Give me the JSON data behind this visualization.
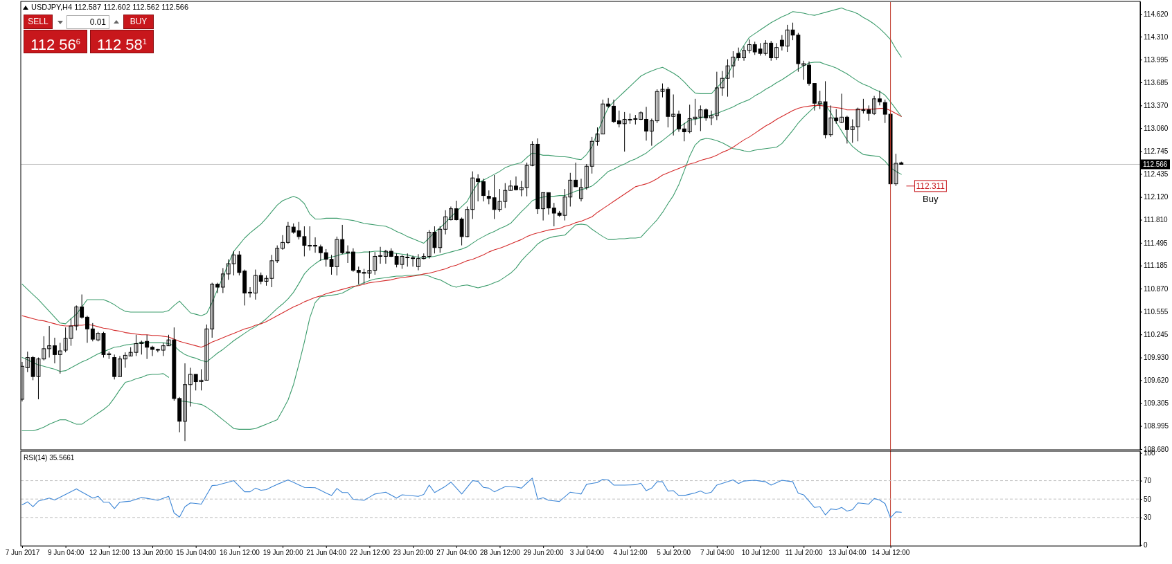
{
  "chart_data": [
    {
      "type": "candlestick",
      "title": "USDJPY,H4 112.587 112.602 112.562 112.566",
      "categories": [
        null,
        null,
        null,
        null,
        null,
        null,
        null,
        null,
        null,
        null,
        null,
        null,
        null,
        null,
        null,
        null,
        null,
        null,
        null,
        null,
        null,
        null,
        null,
        null,
        null,
        null,
        null,
        null,
        null,
        null,
        null,
        null,
        null,
        null,
        null,
        null,
        null,
        null,
        null,
        null,
        null,
        null,
        null,
        null,
        null,
        null,
        null,
        null,
        null,
        null,
        null,
        null,
        null,
        null,
        null,
        null,
        null,
        null,
        null,
        null,
        null,
        null,
        null,
        null,
        null,
        null,
        null,
        null,
        null,
        null,
        null,
        null,
        null,
        null,
        null,
        null,
        null,
        null,
        null,
        null,
        null,
        null,
        null,
        null,
        null,
        null,
        null,
        null,
        null,
        null,
        null,
        null,
        null,
        null,
        null,
        null,
        null,
        null,
        null,
        null,
        null,
        null,
        null,
        null,
        null,
        null,
        null,
        null,
        null,
        null,
        null,
        null,
        null,
        null,
        null,
        null,
        null,
        null,
        null,
        null,
        null,
        null,
        null,
        null,
        null,
        null,
        null,
        null,
        null,
        null,
        null,
        null,
        null,
        null,
        null,
        null,
        null,
        null,
        null,
        null,
        null,
        null,
        null,
        null,
        null,
        null,
        null,
        null,
        null,
        null,
        null,
        null,
        null,
        null,
        null,
        null,
        null,
        null,
        null,
        null,
        null,
        null,
        null
      ],
      "ylim": [
        108.67,
        114.79
      ],
      "yticks": [
        {
          "value": 114.62,
          "label": "114.620"
        },
        {
          "value": 114.31,
          "label": "114.310"
        },
        {
          "value": 113.995,
          "label": "113.995"
        },
        {
          "value": 113.685,
          "label": "113.685"
        },
        {
          "value": 113.37,
          "label": "113.370"
        },
        {
          "value": 113.06,
          "label": "113.060"
        },
        {
          "value": 112.745,
          "label": "112.745"
        },
        {
          "value": 112.435,
          "label": "112.435"
        },
        {
          "value": 112.12,
          "label": "112.120"
        },
        {
          "value": 111.81,
          "label": "111.810"
        },
        {
          "value": 111.495,
          "label": "111.495"
        },
        {
          "value": 111.185,
          "label": "111.185"
        },
        {
          "value": 110.87,
          "label": "110.870"
        },
        {
          "value": 110.555,
          "label": "110.555"
        },
        {
          "value": 110.245,
          "label": "110.245"
        },
        {
          "value": 109.93,
          "label": "109.930"
        },
        {
          "value": 109.62,
          "label": "109.620"
        },
        {
          "value": 109.305,
          "label": "109.305"
        },
        {
          "value": 108.995,
          "label": "108.995"
        },
        {
          "value": 108.68,
          "label": "108.680"
        }
      ],
      "tick_labels": "y",
      "ohlc": [
        [
          109.36,
          109.87,
          109.33,
          109.81
        ],
        [
          109.79,
          110.01,
          109.73,
          109.93
        ],
        [
          109.93,
          109.95,
          109.62,
          109.67
        ],
        [
          109.67,
          109.93,
          109.36,
          109.91
        ],
        [
          109.91,
          110.22,
          109.89,
          110.05
        ],
        [
          110.05,
          110.36,
          109.93,
          110.09
        ],
        [
          110.09,
          110.2,
          109.85,
          109.97
        ],
        [
          109.97,
          110.13,
          109.71,
          110.02
        ],
        [
          110.03,
          110.34,
          110.0,
          110.19
        ],
        [
          110.19,
          110.46,
          110.09,
          110.36
        ],
        [
          110.36,
          110.64,
          110.3,
          110.62
        ],
        [
          110.62,
          110.79,
          110.46,
          110.48
        ],
        [
          110.48,
          110.5,
          110.13,
          110.32
        ],
        [
          110.32,
          110.4,
          110.15,
          110.18
        ],
        [
          110.17,
          110.28,
          110.15,
          110.26
        ],
        [
          110.26,
          110.28,
          109.93,
          109.97
        ],
        [
          109.97,
          110.01,
          109.91,
          109.98
        ],
        [
          109.93,
          109.97,
          109.63,
          109.67
        ],
        [
          109.67,
          109.95,
          109.67,
          109.91
        ],
        [
          109.91,
          110.0,
          109.79,
          109.96
        ],
        [
          109.95,
          110.07,
          109.95,
          110.0
        ],
        [
          110.0,
          110.24,
          109.95,
          110.12
        ],
        [
          110.12,
          110.16,
          109.97,
          110.14
        ],
        [
          110.15,
          110.24,
          109.91,
          110.07
        ],
        [
          110.07,
          110.09,
          109.95,
          110.04
        ],
        [
          110.04,
          110.05,
          110.0,
          110.03
        ],
        [
          110.03,
          110.13,
          109.95,
          110.09
        ],
        [
          110.09,
          110.24,
          110.09,
          110.17
        ],
        [
          110.17,
          110.34,
          109.34,
          109.37
        ],
        [
          109.37,
          109.39,
          108.91,
          109.06
        ],
        [
          109.06,
          109.85,
          108.79,
          109.56
        ],
        [
          109.56,
          109.79,
          109.26,
          109.7
        ],
        [
          109.7,
          109.7,
          109.48,
          109.6
        ],
        [
          109.6,
          109.77,
          109.48,
          109.62
        ],
        [
          109.62,
          110.38,
          109.62,
          110.32
        ],
        [
          110.32,
          110.95,
          110.2,
          110.93
        ],
        [
          110.93,
          110.95,
          110.81,
          110.89
        ],
        [
          110.89,
          111.15,
          110.81,
          111.07
        ],
        [
          111.07,
          111.27,
          110.99,
          111.21
        ],
        [
          111.21,
          111.38,
          111.05,
          111.33
        ],
        [
          111.33,
          111.38,
          111.05,
          111.09
        ],
        [
          111.11,
          111.13,
          110.64,
          110.81
        ],
        [
          110.81,
          110.89,
          110.75,
          110.82
        ],
        [
          110.81,
          111.13,
          110.72,
          111.05
        ],
        [
          111.05,
          111.09,
          110.93,
          110.97
        ],
        [
          110.97,
          111.05,
          110.91,
          111.01
        ],
        [
          111.01,
          111.33,
          110.89,
          111.25
        ],
        [
          111.25,
          111.46,
          111.22,
          111.42
        ],
        [
          111.42,
          111.6,
          111.4,
          111.5
        ],
        [
          111.5,
          111.78,
          111.48,
          111.72
        ],
        [
          111.71,
          111.76,
          111.62,
          111.64
        ],
        [
          111.66,
          111.78,
          111.54,
          111.58
        ],
        [
          111.58,
          111.72,
          111.31,
          111.46
        ],
        [
          111.46,
          111.72,
          111.39,
          111.46
        ],
        [
          111.46,
          111.57,
          111.36,
          111.45
        ],
        [
          111.44,
          111.47,
          111.25,
          111.36
        ],
        [
          111.36,
          111.41,
          111.17,
          111.27
        ],
        [
          111.27,
          111.33,
          111.06,
          111.17
        ],
        [
          111.17,
          111.58,
          111.05,
          111.54
        ],
        [
          111.54,
          111.74,
          111.34,
          111.36
        ],
        [
          111.36,
          111.46,
          111.22,
          111.37
        ],
        [
          111.37,
          111.42,
          111.1,
          111.12
        ],
        [
          111.12,
          111.17,
          110.93,
          111.09
        ],
        [
          111.09,
          111.14,
          110.93,
          111.08
        ],
        [
          111.08,
          111.38,
          111.01,
          111.12
        ],
        [
          111.12,
          111.37,
          111.06,
          111.31
        ],
        [
          111.31,
          111.44,
          111.21,
          111.32
        ],
        [
          111.31,
          111.4,
          111.21,
          111.38
        ],
        [
          111.38,
          111.42,
          111.3,
          111.31
        ],
        [
          111.31,
          111.35,
          111.16,
          111.2
        ],
        [
          111.2,
          111.33,
          111.14,
          111.31
        ],
        [
          111.3,
          111.35,
          111.17,
          111.3
        ],
        [
          111.29,
          111.32,
          111.17,
          111.28
        ],
        [
          111.17,
          111.34,
          111.12,
          111.28
        ],
        [
          111.28,
          111.35,
          111.27,
          111.31
        ],
        [
          111.31,
          111.67,
          111.28,
          111.64
        ],
        [
          111.64,
          111.72,
          111.35,
          111.43
        ],
        [
          111.43,
          111.72,
          111.36,
          111.68
        ],
        [
          111.68,
          111.94,
          111.61,
          111.85
        ],
        [
          111.81,
          111.99,
          111.8,
          111.96
        ],
        [
          111.96,
          112.07,
          111.8,
          111.81
        ],
        [
          111.82,
          111.84,
          111.46,
          111.58
        ],
        [
          111.58,
          111.99,
          111.57,
          111.95
        ],
        [
          111.95,
          112.47,
          111.82,
          112.38
        ],
        [
          112.37,
          112.43,
          112.06,
          112.33
        ],
        [
          112.33,
          112.37,
          112.06,
          112.14
        ],
        [
          112.13,
          112.21,
          112.02,
          112.1
        ],
        [
          112.11,
          112.42,
          111.82,
          111.95
        ],
        [
          111.95,
          112.23,
          111.92,
          112.06
        ],
        [
          112.06,
          112.31,
          111.97,
          112.21
        ],
        [
          112.21,
          112.35,
          112.21,
          112.27
        ],
        [
          112.27,
          112.4,
          112.21,
          112.22
        ],
        [
          112.22,
          112.34,
          112.13,
          112.25
        ],
        [
          112.25,
          112.59,
          112.13,
          112.55
        ],
        [
          112.55,
          112.88,
          112.54,
          112.84
        ],
        [
          112.84,
          112.92,
          111.89,
          111.96
        ],
        [
          111.96,
          112.18,
          111.8,
          112.18
        ],
        [
          112.18,
          112.18,
          111.88,
          111.97
        ],
        [
          111.97,
          112.04,
          111.72,
          111.9
        ],
        [
          111.9,
          111.93,
          111.85,
          111.87
        ],
        [
          111.87,
          112.23,
          111.8,
          112.12
        ],
        [
          112.12,
          112.45,
          111.99,
          112.35
        ],
        [
          112.35,
          112.59,
          112.26,
          112.26
        ],
        [
          112.1,
          112.37,
          112.06,
          112.25
        ],
        [
          112.25,
          112.57,
          112.22,
          112.54
        ],
        [
          112.54,
          112.94,
          112.44,
          112.88
        ],
        [
          112.88,
          113.07,
          112.82,
          112.98
        ],
        [
          112.98,
          113.45,
          112.98,
          113.39
        ],
        [
          113.39,
          113.47,
          113.34,
          113.36
        ],
        [
          113.36,
          113.45,
          113.13,
          113.15
        ],
        [
          113.16,
          113.3,
          113.07,
          113.12
        ],
        [
          113.12,
          113.28,
          112.74,
          113.18
        ],
        [
          113.18,
          113.26,
          113.12,
          113.18
        ],
        [
          113.18,
          113.24,
          113.11,
          113.19
        ],
        [
          113.18,
          113.29,
          113.17,
          113.27
        ],
        [
          113.18,
          113.35,
          112.89,
          113.02
        ],
        [
          113.02,
          113.19,
          112.82,
          113.16
        ],
        [
          113.16,
          113.59,
          113.13,
          113.56
        ],
        [
          113.56,
          113.67,
          113.48,
          113.59
        ],
        [
          113.59,
          113.62,
          113.07,
          113.22
        ],
        [
          113.22,
          113.52,
          112.96,
          113.25
        ],
        [
          113.25,
          113.3,
          113.01,
          113.05
        ],
        [
          113.05,
          113.13,
          112.88,
          113.01
        ],
        [
          113.01,
          113.38,
          112.99,
          113.19
        ],
        [
          113.19,
          113.46,
          113.1,
          113.21
        ],
        [
          113.21,
          113.37,
          113.02,
          113.31
        ],
        [
          113.31,
          113.33,
          113.16,
          113.2
        ],
        [
          113.2,
          113.3,
          113.1,
          113.23
        ],
        [
          113.23,
          113.83,
          113.17,
          113.61
        ],
        [
          113.61,
          113.84,
          113.5,
          113.74
        ],
        [
          113.74,
          114.0,
          113.49,
          113.91
        ],
        [
          113.91,
          114.11,
          113.75,
          114.03
        ],
        [
          114.08,
          114.16,
          113.98,
          114.02
        ],
        [
          114.02,
          114.18,
          113.98,
          114.12
        ],
        [
          114.12,
          114.27,
          114.08,
          114.2
        ],
        [
          114.2,
          114.24,
          114.06,
          114.1
        ],
        [
          114.14,
          114.22,
          114.05,
          114.08
        ],
        [
          114.08,
          114.26,
          114.05,
          114.22
        ],
        [
          114.22,
          114.25,
          113.98,
          114.02
        ],
        [
          114.02,
          114.22,
          113.99,
          114.16
        ],
        [
          114.26,
          114.33,
          114.12,
          114.18
        ],
        [
          114.18,
          114.47,
          114.1,
          114.4
        ],
        [
          114.4,
          114.5,
          114.26,
          114.33
        ],
        [
          114.33,
          114.36,
          113.83,
          113.94
        ],
        [
          113.92,
          113.98,
          113.72,
          113.94
        ],
        [
          113.92,
          113.97,
          113.64,
          113.67
        ],
        [
          113.67,
          113.67,
          113.3,
          113.4
        ],
        [
          113.39,
          113.57,
          113.32,
          113.42
        ],
        [
          113.42,
          113.7,
          112.92,
          112.97
        ],
        [
          112.97,
          113.37,
          112.94,
          113.2
        ],
        [
          113.2,
          113.32,
          113.12,
          113.16
        ],
        [
          113.14,
          113.53,
          113.13,
          113.21
        ],
        [
          113.21,
          113.23,
          112.85,
          113.04
        ],
        [
          113.04,
          113.18,
          112.86,
          113.08
        ],
        [
          113.08,
          113.34,
          112.88,
          113.32
        ],
        [
          113.31,
          113.46,
          113.26,
          113.31
        ],
        [
          113.31,
          113.37,
          113.16,
          113.26
        ],
        [
          113.26,
          113.5,
          113.24,
          113.46
        ],
        [
          113.46,
          113.57,
          113.37,
          113.42
        ],
        [
          113.41,
          113.45,
          113.13,
          113.25
        ],
        [
          113.25,
          113.27,
          112.29,
          112.3
        ],
        [
          112.3,
          112.71,
          112.27,
          112.58
        ],
        [
          112.587,
          112.602,
          112.562,
          112.566
        ]
      ],
      "series": [
        {
          "type": "line",
          "color": "#3c9c6c",
          "values": [
            110.93,
            110.86,
            110.79,
            110.72,
            110.64,
            110.56,
            110.48,
            110.4,
            110.39,
            110.46,
            110.52,
            110.62,
            110.72,
            110.72,
            110.72,
            110.72,
            110.69,
            110.65,
            110.6,
            110.56,
            110.55,
            110.55,
            110.55,
            110.55,
            110.55,
            110.55,
            110.55,
            110.57,
            110.64,
            110.7,
            110.62,
            110.54,
            110.52,
            110.5,
            110.53,
            110.68,
            110.86,
            111.03,
            111.21,
            111.38,
            111.47,
            111.56,
            111.63,
            111.69,
            111.75,
            111.83,
            111.92,
            112.01,
            112.07,
            112.1,
            112.13,
            112.1,
            112.03,
            111.89,
            111.82,
            111.82,
            111.83,
            111.83,
            111.83,
            111.82,
            111.81,
            111.8,
            111.78,
            111.76,
            111.75,
            111.74,
            111.73,
            111.72,
            111.69,
            111.65,
            111.62,
            111.58,
            111.55,
            111.52,
            111.49,
            111.56,
            111.64,
            111.7,
            111.77,
            111.85,
            111.92,
            111.99,
            112.06,
            112.2,
            112.31,
            112.35,
            112.39,
            112.43,
            112.47,
            112.52,
            112.55,
            112.57,
            112.59,
            112.66,
            112.72,
            112.71,
            112.69,
            112.69,
            112.68,
            112.67,
            112.67,
            112.66,
            112.64,
            112.63,
            112.7,
            112.81,
            113.0,
            113.18,
            113.34,
            113.42,
            113.49,
            113.56,
            113.63,
            113.7,
            113.77,
            113.81,
            113.84,
            113.87,
            113.89,
            113.85,
            113.81,
            113.76,
            113.69,
            113.61,
            113.54,
            113.53,
            113.53,
            113.53,
            113.61,
            113.69,
            113.79,
            113.93,
            114.07,
            114.19,
            114.3,
            114.35,
            114.4,
            114.45,
            114.5,
            114.54,
            114.58,
            114.61,
            114.65,
            114.64,
            114.63,
            114.61,
            114.6,
            114.62,
            114.64,
            114.66,
            114.68,
            114.7,
            114.67,
            114.65,
            114.62,
            114.57,
            114.53,
            114.48,
            114.42,
            114.35,
            114.27,
            114.14,
            114.03
          ]
        },
        {
          "type": "line",
          "color": "#3c9c6c",
          "values": [
            109.93,
            109.9,
            109.86,
            109.83,
            109.81,
            109.79,
            109.77,
            109.74,
            109.75,
            109.79,
            109.83,
            109.87,
            109.9,
            109.94,
            109.98,
            110.01,
            110.04,
            110.07,
            110.08,
            110.1,
            110.11,
            110.12,
            110.13,
            110.13,
            110.13,
            110.13,
            110.13,
            110.12,
            110.09,
            110.02,
            109.97,
            109.94,
            109.92,
            109.89,
            109.87,
            109.93,
            109.99,
            110.04,
            110.1,
            110.16,
            110.21,
            110.26,
            110.31,
            110.35,
            110.4,
            110.46,
            110.53,
            110.6,
            110.66,
            110.73,
            110.82,
            110.94,
            111.07,
            111.15,
            111.21,
            111.26,
            111.28,
            111.3,
            111.32,
            111.34,
            111.35,
            111.36,
            111.36,
            111.37,
            111.37,
            111.38,
            111.38,
            111.37,
            111.36,
            111.35,
            111.34,
            111.33,
            111.31,
            111.3,
            111.28,
            111.3,
            111.31,
            111.33,
            111.35,
            111.37,
            111.39,
            111.41,
            111.44,
            111.49,
            111.54,
            111.58,
            111.62,
            111.65,
            111.69,
            111.72,
            111.76,
            111.84,
            111.92,
            111.99,
            112.07,
            112.1,
            112.12,
            112.13,
            112.13,
            112.14,
            112.14,
            112.17,
            112.2,
            112.22,
            112.24,
            112.27,
            112.33,
            112.4,
            112.47,
            112.5,
            112.54,
            112.57,
            112.61,
            112.64,
            112.68,
            112.72,
            112.78,
            112.84,
            112.89,
            112.95,
            113.01,
            113.07,
            113.12,
            113.17,
            113.18,
            113.2,
            113.22,
            113.24,
            113.26,
            113.29,
            113.32,
            113.35,
            113.39,
            113.42,
            113.45,
            113.5,
            113.54,
            113.59,
            113.63,
            113.68,
            113.72,
            113.77,
            113.82,
            113.87,
            113.91,
            113.95,
            113.96,
            113.96,
            113.93,
            113.91,
            113.88,
            113.84,
            113.8,
            113.75,
            113.7,
            113.66,
            113.63,
            113.59,
            113.56,
            113.51,
            113.42,
            113.32,
            113.22
          ]
        },
        {
          "type": "line",
          "color": "#3c9c6c",
          "values": [
            108.93,
            108.93,
            108.93,
            108.95,
            108.98,
            109.02,
            109.05,
            109.08,
            109.08,
            109.05,
            109.02,
            109.02,
            109.07,
            109.12,
            109.17,
            109.22,
            109.28,
            109.38,
            109.49,
            109.59,
            109.61,
            109.64,
            109.66,
            109.69,
            109.7,
            109.7,
            109.71,
            109.66,
            null,
            109.34,
            109.33,
            109.32,
            109.3,
            109.29,
            109.25,
            109.2,
            109.14,
            109.08,
            109.02,
            108.96,
            108.95,
            108.95,
            108.95,
            108.96,
            108.99,
            109.02,
            109.05,
            109.08,
            109.21,
            109.35,
            109.56,
            109.84,
            110.14,
            110.47,
            110.68,
            110.76,
            110.77,
            110.78,
            110.79,
            110.81,
            110.85,
            110.89,
            110.92,
            110.95,
            110.98,
            111.0,
            111.01,
            111.02,
            111.03,
            111.04,
            111.04,
            111.05,
            111.05,
            111.06,
            111.06,
            111.04,
            111.01,
            110.99,
            110.95,
            110.91,
            110.89,
            110.91,
            110.92,
            110.9,
            110.88,
            110.9,
            110.92,
            110.95,
            110.98,
            111.03,
            111.08,
            111.15,
            111.25,
            111.33,
            111.4,
            111.48,
            111.53,
            111.56,
            111.58,
            111.59,
            111.6,
            111.67,
            111.74,
            111.75,
            111.74,
            111.68,
            111.63,
            111.58,
            111.54,
            111.54,
            111.55,
            111.55,
            111.56,
            111.56,
            111.57,
            111.65,
            111.73,
            111.81,
            111.91,
            112.03,
            112.14,
            112.29,
            112.48,
            112.68,
            112.83,
            112.9,
            112.92,
            112.91,
            112.89,
            112.86,
            112.82,
            112.78,
            112.77,
            112.75,
            112.74,
            112.76,
            112.77,
            112.78,
            112.79,
            112.8,
            112.85,
            112.94,
            113.03,
            113.13,
            113.21,
            113.28,
            113.35,
            113.4,
            113.38,
            113.27,
            113.14,
            113.02,
            112.9,
            112.81,
            112.75,
            112.7,
            112.69,
            112.68,
            112.67,
            112.61,
            112.52,
            112.47,
            112.43
          ]
        },
        {
          "type": "line",
          "color": "#d42a2a",
          "values": [
            110.5,
            110.48,
            110.46,
            110.44,
            110.43,
            110.41,
            110.39,
            110.37,
            110.36,
            110.36,
            110.37,
            110.37,
            110.38,
            110.37,
            110.35,
            110.33,
            110.32,
            110.3,
            110.29,
            110.27,
            110.26,
            110.25,
            110.24,
            110.24,
            110.23,
            110.23,
            110.22,
            110.21,
            110.18,
            110.15,
            110.13,
            110.11,
            110.09,
            110.07,
            110.1,
            110.14,
            110.17,
            110.2,
            110.23,
            110.26,
            110.29,
            110.32,
            110.34,
            110.37,
            110.39,
            110.42,
            110.46,
            110.5,
            110.54,
            110.58,
            110.62,
            110.65,
            110.69,
            110.72,
            110.75,
            110.77,
            110.8,
            110.82,
            110.84,
            110.86,
            110.88,
            110.9,
            110.91,
            110.93,
            110.95,
            110.96,
            110.97,
            110.98,
            110.99,
            111.01,
            111.02,
            111.03,
            111.04,
            111.05,
            111.07,
            111.08,
            111.1,
            111.12,
            111.14,
            111.17,
            111.19,
            111.22,
            111.25,
            111.27,
            111.3,
            111.33,
            111.37,
            111.4,
            111.42,
            111.45,
            111.48,
            111.51,
            111.54,
            111.58,
            111.61,
            111.63,
            111.65,
            111.67,
            111.68,
            111.69,
            111.72,
            111.74,
            111.77,
            111.79,
            111.82,
            111.85,
            111.91,
            111.96,
            112.01,
            112.06,
            112.11,
            112.16,
            112.21,
            112.26,
            112.28,
            112.3,
            112.33,
            112.37,
            112.42,
            112.45,
            112.48,
            112.51,
            112.54,
            112.57,
            112.59,
            112.62,
            112.64,
            112.66,
            112.69,
            112.73,
            112.76,
            112.8,
            112.85,
            112.9,
            112.94,
            112.99,
            113.04,
            113.09,
            113.13,
            113.18,
            113.22,
            113.26,
            113.3,
            113.33,
            113.35,
            113.36,
            113.37,
            113.37,
            113.36,
            113.35,
            113.34,
            113.33,
            113.31,
            113.31,
            113.31,
            113.32,
            113.32,
            113.32,
            113.33,
            113.33,
            113.3,
            113.26,
            113.22
          ]
        }
      ],
      "ref_lines": [
        {
          "axis": "y",
          "value": 112.566,
          "label": "112.566",
          "color": "#c0c0c0"
        }
      ],
      "annotations": [
        "SELL",
        "0.01",
        "BUY",
        "112 56$^{6}$",
        "112 58$^{1}$",
        "112.311",
        "Buy"
      ]
    },
    {
      "type": "line",
      "title": "RSI(14) 35.5661",
      "categories": [
        "7 Jun 2017",
        null,
        null,
        null,
        null,
        null,
        null,
        null,
        "9 Jun 04:00",
        null,
        null,
        null,
        null,
        null,
        null,
        null,
        "12 Jun 12:00",
        null,
        null,
        null,
        null,
        null,
        null,
        null,
        "13 Jun 20:00",
        null,
        null,
        null,
        null,
        null,
        null,
        null,
        "15 Jun 04:00",
        null,
        null,
        null,
        null,
        null,
        null,
        null,
        "16 Jun 12:00",
        null,
        null,
        null,
        null,
        null,
        null,
        null,
        "19 Jun 20:00",
        null,
        null,
        null,
        null,
        null,
        null,
        null,
        "21 Jun 04:00",
        null,
        null,
        null,
        null,
        null,
        null,
        null,
        "22 Jun 12:00",
        null,
        null,
        null,
        null,
        null,
        null,
        null,
        "23 Jun 20:00",
        null,
        null,
        null,
        null,
        null,
        null,
        null,
        "27 Jun 04:00",
        null,
        null,
        null,
        null,
        null,
        null,
        null,
        "28 Jun 12:00",
        null,
        null,
        null,
        null,
        null,
        null,
        null,
        "29 Jun 20:00",
        null,
        null,
        null,
        null,
        null,
        null,
        null,
        "3 Jul 04:00",
        null,
        null,
        null,
        null,
        null,
        null,
        null,
        "4 Jul 12:00",
        null,
        null,
        null,
        null,
        null,
        null,
        null,
        "5 Jul 20:00",
        null,
        null,
        null,
        null,
        null,
        null,
        null,
        "7 Jul 04:00",
        null,
        null,
        null,
        null,
        null,
        null,
        null,
        "10 Jul 12:00",
        null,
        null,
        null,
        null,
        null,
        null,
        null,
        "11 Jul 20:00",
        null,
        null,
        null,
        null,
        null,
        null,
        null,
        "13 Jul 04:00",
        null,
        null,
        null,
        null,
        null,
        null,
        null,
        "14 Jul 12:00",
        null,
        null
      ],
      "ylim": [
        -1,
        102
      ],
      "yticks": [
        100,
        70,
        50,
        30,
        0
      ],
      "series": [
        {
          "type": "line",
          "color": "#3d86d6",
          "values": [
            43.7,
            47,
            41.7,
            47.8,
            49.4,
            51,
            49,
            52,
            55,
            58.1,
            61.1,
            57.7,
            54.4,
            51,
            53,
            46.6,
            46.6,
            39.7,
            46.6,
            47.2,
            47.8,
            49.8,
            51.8,
            50.8,
            49.8,
            48.6,
            50.8,
            53,
            34.9,
            30.4,
            41.7,
            45.8,
            45.2,
            44.5,
            54.6,
            64.7,
            65.2,
            66.8,
            68.4,
            70,
            64,
            57.9,
            57.9,
            61.9,
            59.5,
            60.3,
            63.2,
            66,
            68.4,
            70.8,
            68.1,
            65.4,
            62.7,
            62.5,
            62.3,
            59.5,
            56.6,
            53.8,
            61.5,
            57.1,
            57.1,
            49.8,
            49.2,
            48.6,
            52.1,
            55.5,
            56.5,
            57.5,
            54.3,
            51,
            54.6,
            54.1,
            53.5,
            53,
            55,
            65.2,
            57.1,
            60.5,
            63.9,
            68.4,
            62,
            55.5,
            62.8,
            70,
            69.2,
            62.7,
            61.9,
            57.9,
            60.7,
            63.5,
            63.3,
            63.1,
            61.9,
            67.4,
            72.8,
            49.8,
            51.4,
            48.6,
            48,
            47.4,
            52.5,
            57.5,
            56.5,
            55.5,
            66,
            67,
            68,
            71.6,
            70.8,
            65.2,
            65.2,
            65.2,
            65.4,
            65.6,
            67.2,
            59.1,
            61.9,
            68.8,
            68.8,
            58.7,
            59.1,
            53.8,
            53.8,
            55.3,
            56.7,
            58.7,
            55.9,
            57.5,
            65.2,
            67.1,
            68.9,
            70.8,
            66.8,
            69.6,
            70,
            70.4,
            69.6,
            68.8,
            65.2,
            67.8,
            70.4,
            69.6,
            68.8,
            56.3,
            54.6,
            47.8,
            40.9,
            41.7,
            32.8,
            39.3,
            38.5,
            40.9,
            36.9,
            38.5,
            45.8,
            45.2,
            44.5,
            50.6,
            49,
            45,
            29.6,
            36.1,
            35.6
          ]
        }
      ],
      "ref_lines": [
        {
          "axis": "y",
          "value": 70,
          "color": "#c0c0c0",
          "line_style": "dashed"
        },
        {
          "axis": "y",
          "value": 50,
          "color": "#c0c0c0",
          "line_style": "dashed"
        },
        {
          "axis": "y",
          "value": 30,
          "color": "#c0c0c0",
          "line_style": "dashed"
        },
        {
          "axis": "x",
          "value": "14 Jul 12:00",
          "color": "#c0392b"
        }
      ]
    }
  ]
}
